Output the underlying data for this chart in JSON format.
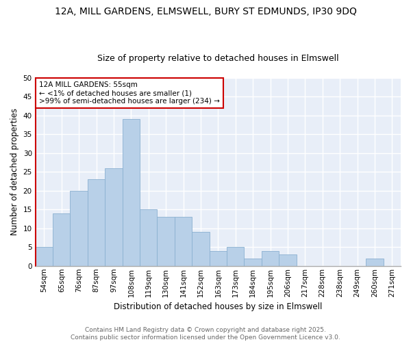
{
  "title": "12A, MILL GARDENS, ELMSWELL, BURY ST EDMUNDS, IP30 9DQ",
  "subtitle": "Size of property relative to detached houses in Elmswell",
  "xlabel": "Distribution of detached houses by size in Elmswell",
  "ylabel": "Number of detached properties",
  "categories": [
    "54sqm",
    "65sqm",
    "76sqm",
    "87sqm",
    "97sqm",
    "108sqm",
    "119sqm",
    "130sqm",
    "141sqm",
    "152sqm",
    "163sqm",
    "173sqm",
    "184sqm",
    "195sqm",
    "206sqm",
    "217sqm",
    "228sqm",
    "238sqm",
    "249sqm",
    "260sqm",
    "271sqm"
  ],
  "values": [
    5,
    14,
    20,
    23,
    26,
    39,
    15,
    13,
    13,
    9,
    4,
    5,
    2,
    4,
    3,
    0,
    0,
    0,
    0,
    2,
    0
  ],
  "bar_color": "#b8d0e8",
  "bar_edge_color": "#8ab0d0",
  "highlight_color": "#cc0000",
  "annotation_text": "12A MILL GARDENS: 55sqm\n← <1% of detached houses are smaller (1)\n>99% of semi-detached houses are larger (234) →",
  "annotation_box_color": "#ffffff",
  "annotation_box_edge": "#cc0000",
  "ylim": [
    0,
    50
  ],
  "yticks": [
    0,
    5,
    10,
    15,
    20,
    25,
    30,
    35,
    40,
    45,
    50
  ],
  "background_color": "#ffffff",
  "plot_bg_color": "#e8eef8",
  "grid_color": "#ffffff",
  "footer_text": "Contains HM Land Registry data © Crown copyright and database right 2025.\nContains public sector information licensed under the Open Government Licence v3.0.",
  "title_fontsize": 10,
  "subtitle_fontsize": 9,
  "axis_label_fontsize": 8.5,
  "tick_fontsize": 7.5,
  "annotation_fontsize": 7.5,
  "footer_fontsize": 6.5
}
